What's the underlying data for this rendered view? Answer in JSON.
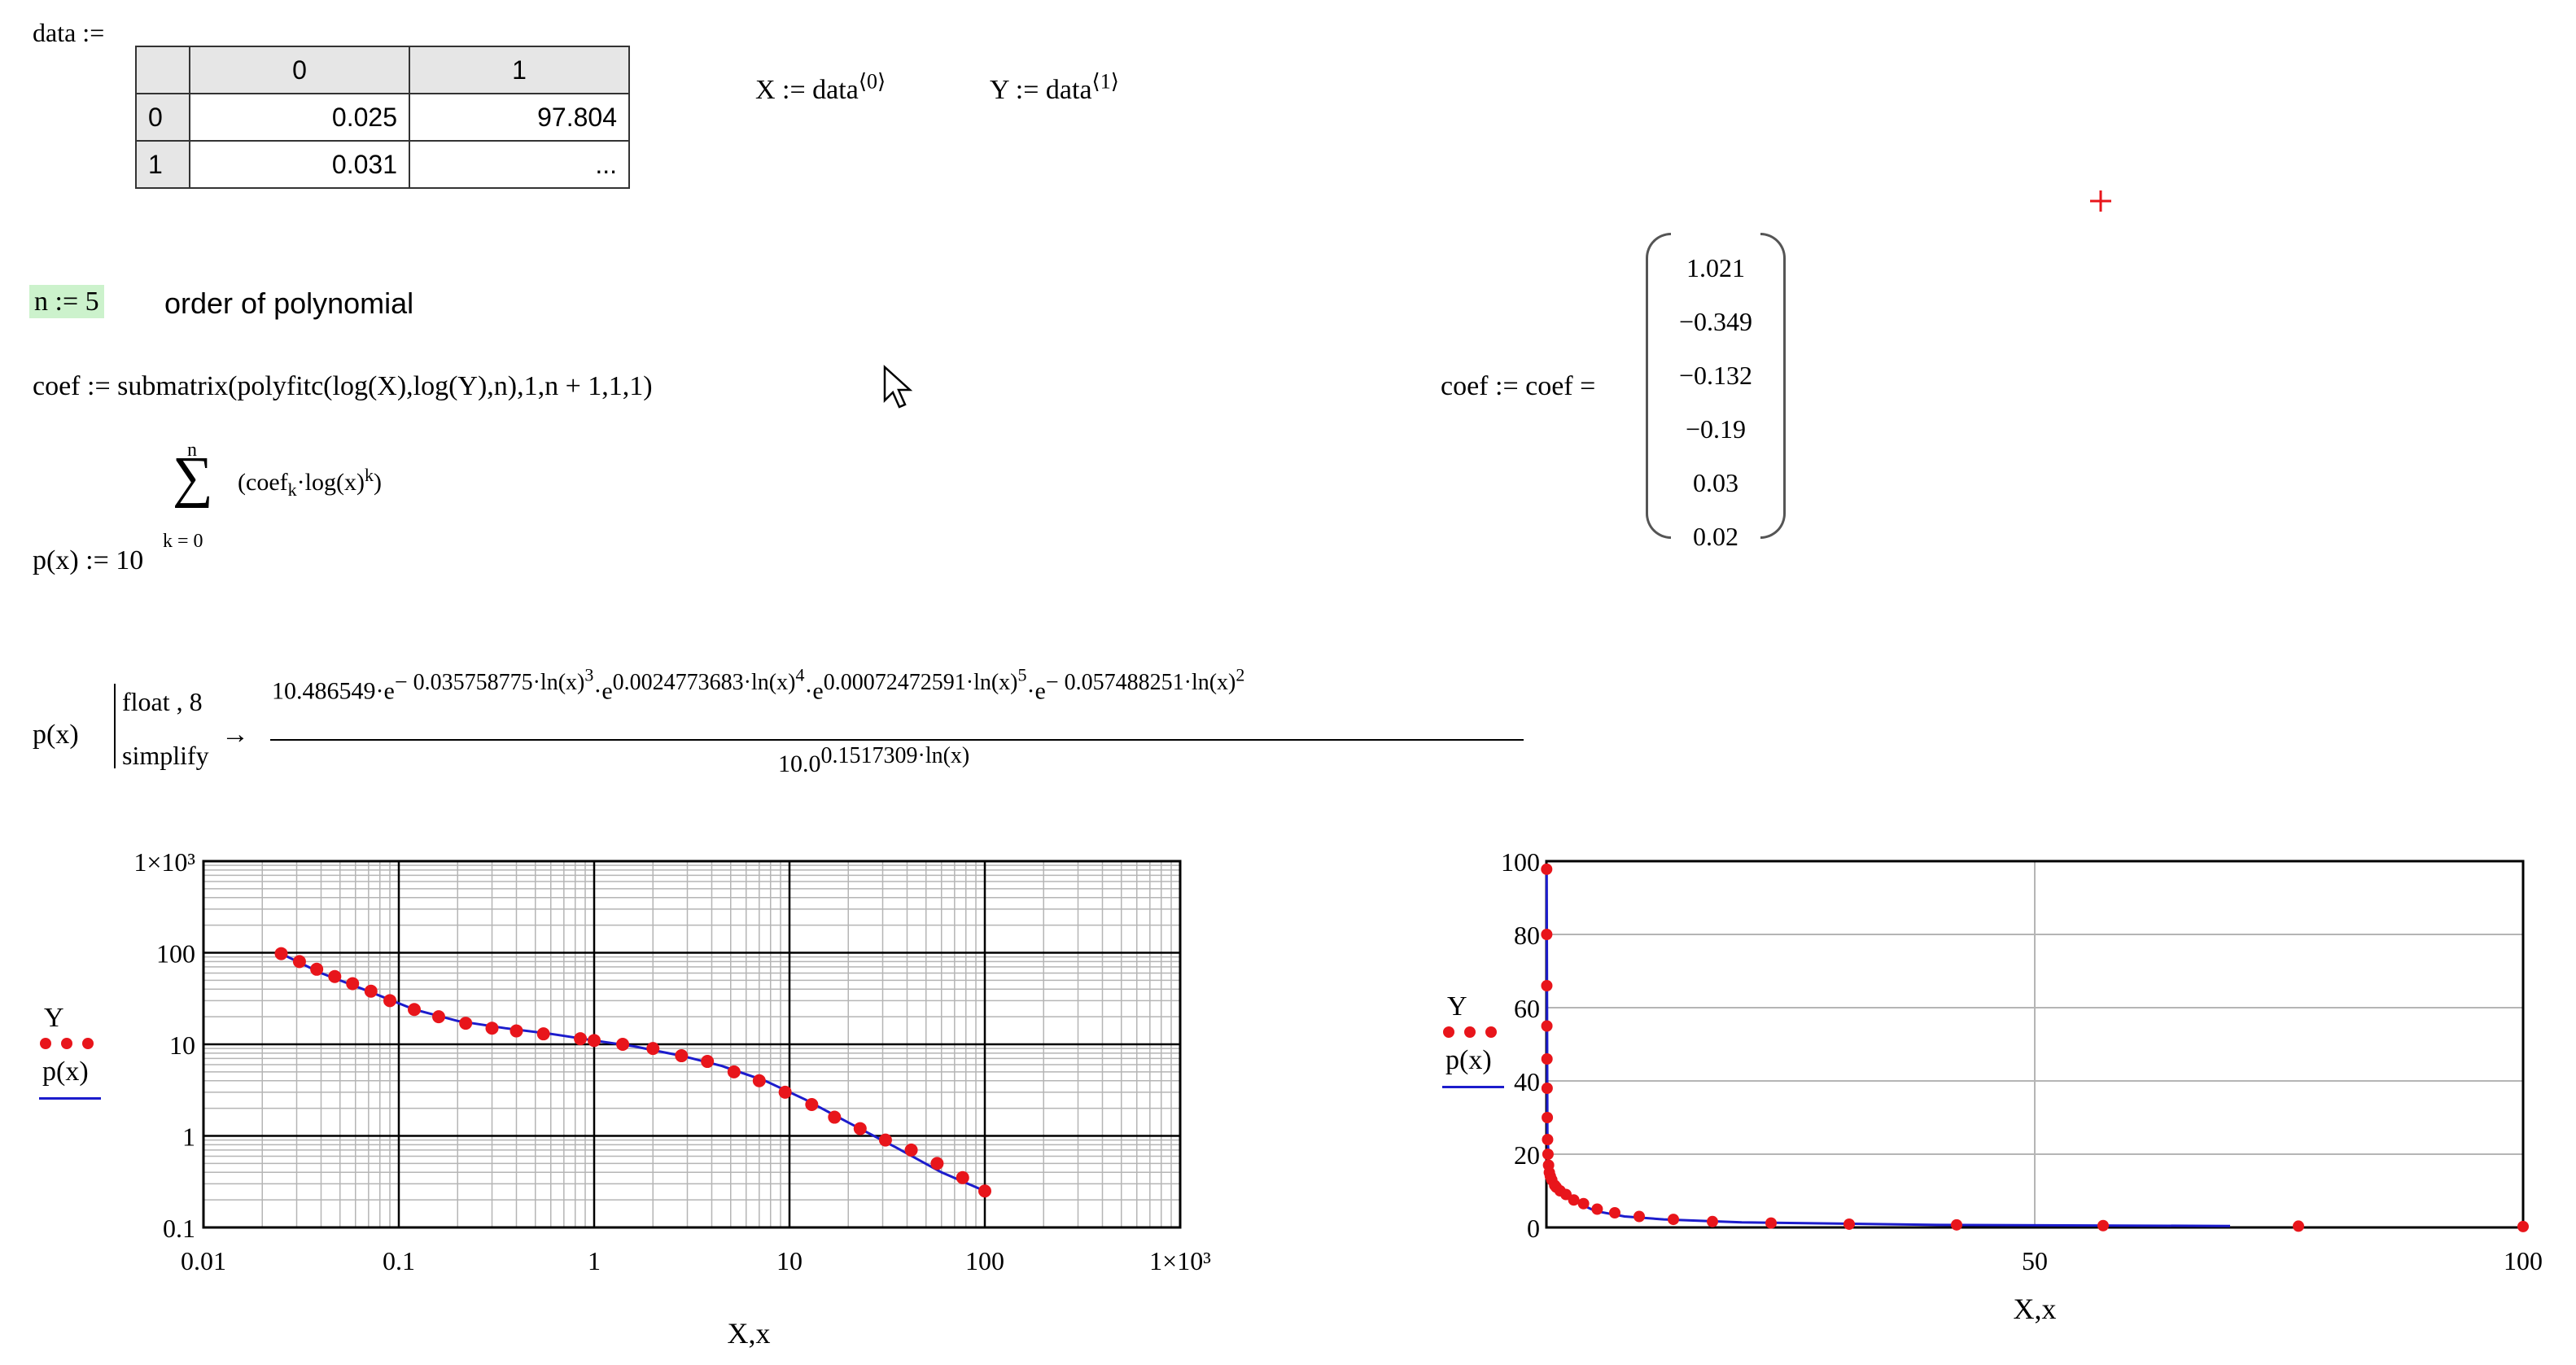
{
  "worksheet": {
    "data_def": {
      "label": "data :="
    },
    "data_table": {
      "col_headers": [
        "0",
        "1"
      ],
      "rows": [
        {
          "index": "0",
          "c0": "0.025",
          "c1": "97.804"
        },
        {
          "index": "1",
          "c0": "0.031",
          "c1": "..."
        }
      ]
    },
    "x_def": {
      "lhs": "X := data",
      "sup": "⟨0⟩"
    },
    "y_def": {
      "lhs": "Y := data",
      "sup": "⟨1⟩"
    },
    "n_def": {
      "expr": "n := 5",
      "comment": "order of polynomial"
    },
    "coef_def": "coef := submatrix(polyfitc(log(X),log(Y),n),1,n + 1,1,1)",
    "coef_eval": {
      "lhs": "coef := coef =",
      "values": [
        "1.021",
        "−0.349",
        "−0.132",
        "−0.19",
        "0.03",
        "0.02"
      ]
    },
    "p_def": {
      "lhs": "p(x) := 10",
      "sum_upper": "n",
      "sum_symbol": "∑",
      "sum_lower": "k = 0",
      "term": "coef",
      "term_sub": "k",
      "term_rest": "·log(x)",
      "term_sup": "k"
    },
    "p_symbolic": {
      "lhs": "p(x)",
      "keyword1": "float , 8",
      "keyword2": "simplify",
      "arrow": "→",
      "numerator": {
        "a": "10.486549·e",
        "a_sup": "− 0.035758775·ln(x)",
        "a_sup_pow": "3",
        "b": "·e",
        "b_sup": "0.0024773683·ln(x)",
        "b_sup_pow": "4",
        "c": "·e",
        "c_sup": "0.00072472591·ln(x)",
        "c_sup_pow": "5",
        "d": "·e",
        "d_sup": "− 0.057488251·ln(x)",
        "d_sup_pow": "2"
      },
      "denominator": {
        "base": "10.0",
        "exp": "0.1517309·ln(x)"
      }
    }
  },
  "legend": {
    "series1": "Y",
    "series2": "p(x)"
  },
  "colors": {
    "points": "#e8151b",
    "fit": "#1c1ccc",
    "grid_major": "#000000",
    "grid_minor": "#b5b5b5",
    "highlight": "#ccf2cc",
    "cursor": "#e8151b"
  },
  "icons": {
    "mouse_cursor": "arrow-cursor-icon",
    "crosshair": "red-crosshair-icon"
  },
  "chart_data": [
    {
      "type": "scatter",
      "scale": "log-log",
      "xlabel": "X,x",
      "ylabel_series": [
        "Y",
        "p(x)"
      ],
      "xlim": [
        0.01,
        1000
      ],
      "ylim": [
        0.1,
        1000
      ],
      "x_ticks": [
        "0.01",
        "0.1",
        "1",
        "10",
        "100",
        "1×10³"
      ],
      "y_ticks": [
        "0.1",
        "1",
        "10",
        "100",
        "1×10³"
      ],
      "grid": true,
      "series": [
        {
          "name": "Y",
          "style": "points",
          "x": [
            0.025,
            0.031,
            0.038,
            0.047,
            0.058,
            0.072,
            0.09,
            0.12,
            0.16,
            0.22,
            0.3,
            0.4,
            0.55,
            0.85,
            1.0,
            1.4,
            2.0,
            2.8,
            3.8,
            5.2,
            7.0,
            9.5,
            13,
            17,
            23,
            31,
            42,
            57,
            77,
            100
          ],
          "y": [
            97.804,
            80,
            66,
            55,
            46,
            38,
            30,
            24,
            20,
            17,
            15,
            14,
            13,
            11.5,
            11,
            10,
            9,
            7.5,
            6.5,
            5,
            4,
            3,
            2.2,
            1.6,
            1.2,
            0.9,
            0.7,
            0.5,
            0.35,
            0.25
          ]
        },
        {
          "name": "p(x)",
          "style": "line",
          "x": [
            0.025,
            0.04,
            0.07,
            0.12,
            0.2,
            0.35,
            0.6,
            1.0,
            1.6,
            2.8,
            4.5,
            7.5,
            12,
            20,
            35,
            60,
            100
          ],
          "y": [
            97.8,
            60,
            38,
            24,
            18,
            15,
            13,
            11,
            9.5,
            7.5,
            5.8,
            4,
            2.5,
            1.4,
            0.75,
            0.4,
            0.25
          ]
        }
      ]
    },
    {
      "type": "scatter",
      "scale": "linear",
      "xlabel": "X,x",
      "ylabel_series": [
        "Y",
        "p(x)"
      ],
      "xlim": [
        0,
        100
      ],
      "ylim": [
        0,
        100
      ],
      "x_ticks": [
        "50",
        "100"
      ],
      "y_ticks": [
        "0",
        "20",
        "40",
        "60",
        "80",
        "100"
      ],
      "grid": true,
      "series": [
        {
          "name": "Y",
          "style": "points",
          "x": [
            0.025,
            0.031,
            0.038,
            0.047,
            0.058,
            0.072,
            0.09,
            0.12,
            0.16,
            0.22,
            0.3,
            0.4,
            0.55,
            0.85,
            1.0,
            1.4,
            2.0,
            2.8,
            3.8,
            5.2,
            7.0,
            9.5,
            13,
            17,
            23,
            31,
            42,
            57,
            77,
            100
          ],
          "y": [
            97.804,
            80,
            66,
            55,
            46,
            38,
            30,
            24,
            20,
            17,
            15,
            14,
            13,
            11.5,
            11,
            10,
            9,
            7.5,
            6.5,
            5,
            4,
            3,
            2.2,
            1.6,
            1.2,
            0.9,
            0.7,
            0.5,
            0.35,
            0.25
          ]
        },
        {
          "name": "p(x)",
          "style": "line",
          "x": [
            0.025,
            0.1,
            0.3,
            0.6,
            1.0,
            2.0,
            3.0,
            5.0,
            8.0,
            12,
            20,
            40,
            70
          ],
          "y": [
            97.8,
            26,
            15,
            13,
            11,
            8.5,
            7,
            4.5,
            3,
            2.2,
            1.4,
            0.7,
            0.4
          ]
        }
      ]
    }
  ]
}
